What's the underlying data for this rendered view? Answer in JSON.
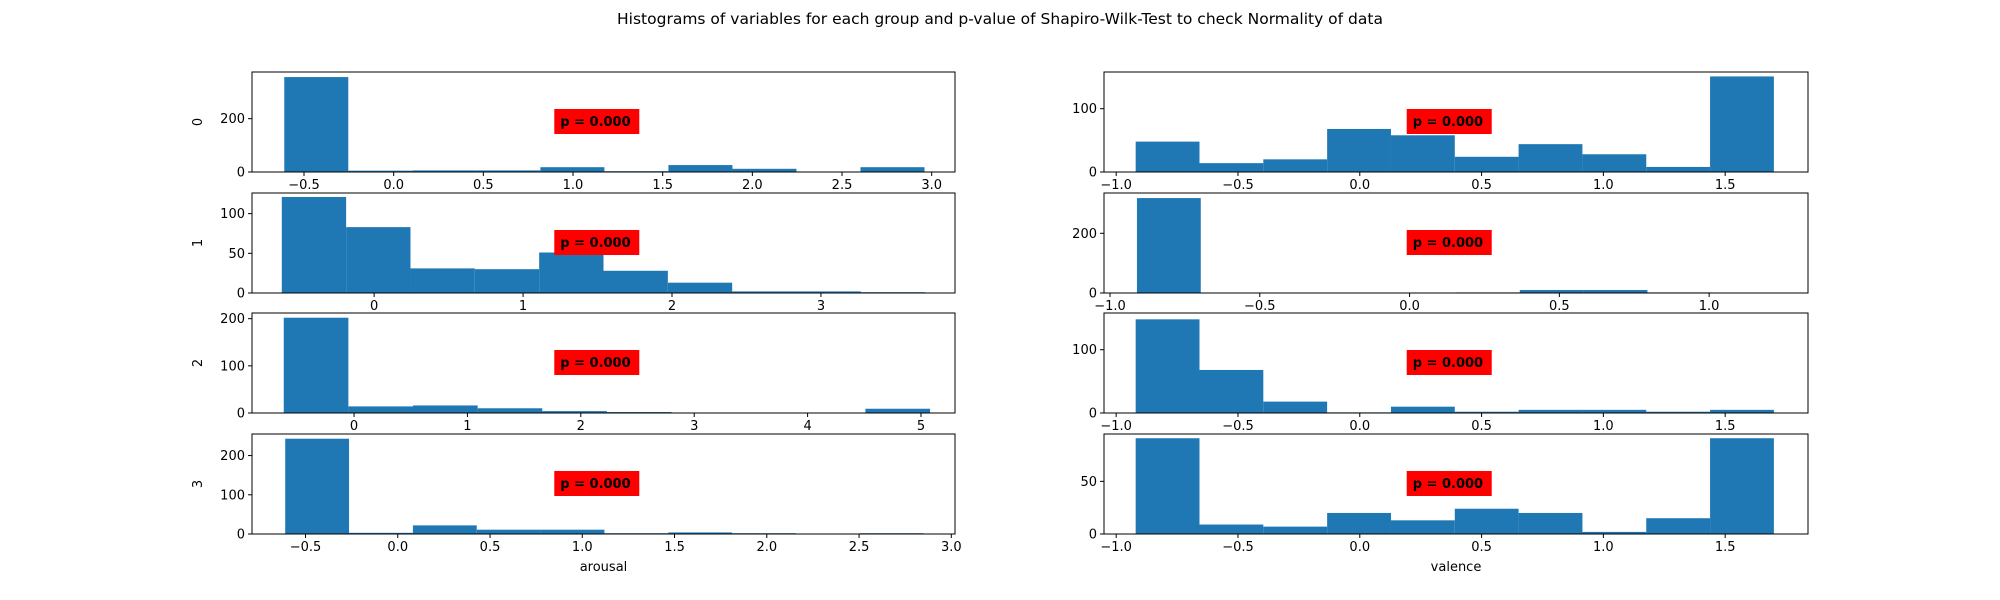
{
  "chart_data": {
    "type": "bar",
    "title": "Histograms of variables for each group and p-value of Shapiro-Wilk-Test to check Normality of data",
    "bar_color": "#1f77b4",
    "annotation_color": "#ff0000",
    "groups": [
      "0",
      "1",
      "2",
      "3"
    ],
    "columns": [
      "arousal",
      "valence"
    ],
    "panels": [
      {
        "id": "g0-arousal",
        "col": 0,
        "row": 0,
        "ylabel": "0",
        "xlabel": "",
        "pvalue": "p = 0.000",
        "xlim": [
          -0.79,
          3.13
        ],
        "ylim": [
          0,
          375
        ],
        "xticks": [
          -0.5,
          0.0,
          0.5,
          1.0,
          1.5,
          2.0,
          2.5,
          3.0
        ],
        "yticks": [
          0,
          200
        ],
        "bin_edges": [
          -0.61,
          -0.253,
          0.104,
          0.461,
          0.818,
          1.175,
          1.532,
          1.889,
          2.246,
          2.603,
          2.96
        ],
        "counts": [
          356,
          5,
          6,
          6,
          18,
          3,
          26,
          12,
          0,
          18
        ]
      },
      {
        "id": "g0-valence",
        "col": 1,
        "row": 0,
        "ylabel": "",
        "xlabel": "",
        "pvalue": "p = 0.000",
        "xlim": [
          -1.05,
          1.84
        ],
        "ylim": [
          0,
          158
        ],
        "xticks": [
          -1.0,
          -0.5,
          0.0,
          0.5,
          1.0,
          1.5
        ],
        "yticks": [
          0,
          100
        ],
        "bin_edges": [
          -0.92,
          -0.658,
          -0.396,
          -0.134,
          0.128,
          0.39,
          0.652,
          0.914,
          1.176,
          1.438,
          1.7
        ],
        "counts": [
          48,
          14,
          20,
          68,
          58,
          24,
          44,
          28,
          8,
          151
        ]
      },
      {
        "id": "g1-arousal",
        "col": 0,
        "row": 1,
        "ylabel": "1",
        "xlabel": "",
        "pvalue": "p = 0.000",
        "xlim": [
          -0.82,
          3.9
        ],
        "ylim": [
          0,
          126
        ],
        "xticks": [
          0,
          1,
          2,
          3
        ],
        "yticks": [
          0,
          50,
          100
        ],
        "bin_edges": [
          -0.62,
          -0.188,
          0.244,
          0.676,
          1.108,
          1.54,
          1.972,
          2.404,
          2.836,
          3.268,
          3.7
        ],
        "counts": [
          121,
          83,
          31,
          30,
          51,
          28,
          13,
          2,
          2,
          1
        ]
      },
      {
        "id": "g1-valence",
        "col": 1,
        "row": 1,
        "ylabel": "",
        "xlabel": "",
        "pvalue": "p = 0.000",
        "xlim": [
          -1.02,
          1.33
        ],
        "ylim": [
          0,
          335
        ],
        "xticks": [
          -1.0,
          -0.5,
          0.0,
          0.5,
          1.0
        ],
        "yticks": [
          0,
          200
        ],
        "bin_edges": [
          -0.91,
          -0.697,
          -0.484,
          -0.271,
          -0.058,
          0.155,
          0.368,
          0.581,
          0.794,
          1.007,
          1.22
        ],
        "counts": [
          318,
          0,
          0,
          0,
          0,
          2,
          10,
          10,
          2,
          1
        ]
      },
      {
        "id": "g2-arousal",
        "col": 0,
        "row": 2,
        "ylabel": "2",
        "xlabel": "",
        "pvalue": "p = 0.000",
        "xlim": [
          -0.9,
          5.3
        ],
        "ylim": [
          0,
          212
        ],
        "xticks": [
          0,
          1,
          2,
          3,
          4,
          5
        ],
        "yticks": [
          0,
          100,
          200
        ],
        "bin_edges": [
          -0.62,
          -0.05,
          0.52,
          1.09,
          1.66,
          2.23,
          2.8,
          3.37,
          3.94,
          4.51,
          5.08
        ],
        "counts": [
          202,
          14,
          16,
          10,
          4,
          2,
          0,
          0,
          0,
          9
        ]
      },
      {
        "id": "g2-valence",
        "col": 1,
        "row": 2,
        "ylabel": "",
        "xlabel": "",
        "pvalue": "p = 0.000",
        "xlim": [
          -1.05,
          1.84
        ],
        "ylim": [
          0,
          158
        ],
        "xticks": [
          -1.0,
          -0.5,
          0.0,
          0.5,
          1.0,
          1.5
        ],
        "yticks": [
          0,
          100
        ],
        "bin_edges": [
          -0.92,
          -0.658,
          -0.396,
          -0.134,
          0.128,
          0.39,
          0.652,
          0.914,
          1.176,
          1.438,
          1.7
        ],
        "counts": [
          148,
          68,
          18,
          1,
          10,
          2,
          5,
          5,
          2,
          5
        ]
      },
      {
        "id": "g3-arousal",
        "col": 0,
        "row": 3,
        "ylabel": "3",
        "xlabel": "arousal",
        "pvalue": "p = 0.000",
        "xlim": [
          -0.79,
          3.02
        ],
        "ylim": [
          0,
          255
        ],
        "xticks": [
          -0.5,
          0.0,
          0.5,
          1.0,
          1.5,
          2.0,
          2.5,
          3.0
        ],
        "yticks": [
          0,
          100,
          200
        ],
        "bin_edges": [
          -0.61,
          -0.264,
          0.082,
          0.428,
          0.774,
          1.12,
          1.466,
          1.812,
          2.158,
          2.504,
          2.85
        ],
        "counts": [
          243,
          3,
          22,
          11,
          11,
          2,
          4,
          2,
          0,
          2
        ]
      },
      {
        "id": "g3-valence",
        "col": 1,
        "row": 3,
        "ylabel": "",
        "xlabel": "valence",
        "pvalue": "p = 0.000",
        "xlim": [
          -1.05,
          1.84
        ],
        "ylim": [
          0,
          95
        ],
        "xticks": [
          -1.0,
          -0.5,
          0.0,
          0.5,
          1.0,
          1.5
        ],
        "yticks": [
          0,
          50
        ],
        "bin_edges": [
          -0.92,
          -0.658,
          -0.396,
          -0.134,
          0.128,
          0.39,
          0.652,
          0.914,
          1.176,
          1.438,
          1.7
        ],
        "counts": [
          91,
          9,
          7,
          20,
          13,
          24,
          20,
          2,
          15,
          91
        ]
      }
    ]
  }
}
